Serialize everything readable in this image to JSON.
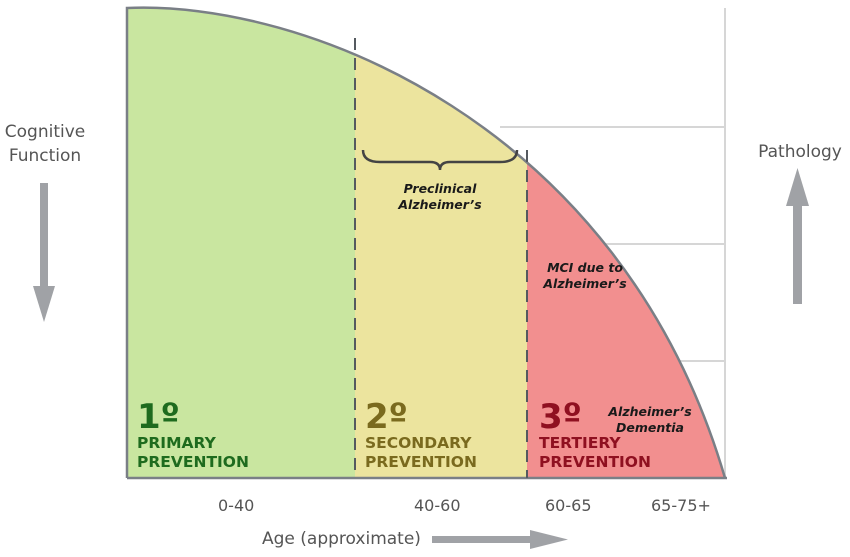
{
  "axes": {
    "y_left_label_line1": "Cognitive",
    "y_left_label_line2": "Function",
    "y_right_label": "Pathology",
    "x_label": "Age (approximate)",
    "x_ticks": [
      "0-40",
      "40-60",
      "60-65",
      "65-75+"
    ]
  },
  "stages": [
    {
      "degree": "1º",
      "line1": "PRIMARY",
      "line2": "PREVENTION",
      "fill": "#c9e6a0",
      "text_color": "#1e6b1e"
    },
    {
      "degree": "2º",
      "line1": "SECONDARY",
      "line2": "PREVENTION",
      "fill": "#ece49e",
      "text_color": "#7a6a1e"
    },
    {
      "degree": "3º",
      "line1": "TERTIERY",
      "line2": "PREVENTION",
      "fill": "#f28f8f",
      "text_color": "#8f1020"
    }
  ],
  "annotations": {
    "preclinical_line1": "Preclinical",
    "preclinical_line2": "Alzheimer’s",
    "mci_line1": "MCI due to",
    "mci_line2": "Alzheimer’s",
    "dementia_line1": "Alzheimer’s",
    "dementia_line2": "Dementia"
  }
}
